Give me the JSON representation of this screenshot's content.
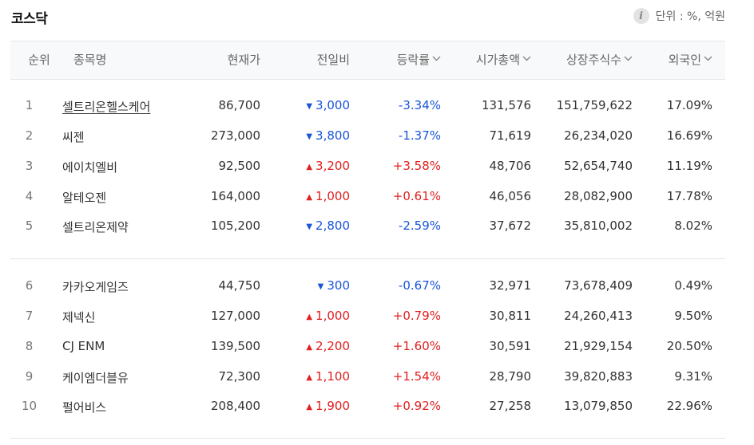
{
  "title": "코스닥",
  "unit_label": "단위 : %, 억원",
  "info_icon": "info-icon",
  "colors": {
    "up": "#e22020",
    "down": "#1a55d9",
    "header_bg": "#f8f9fa"
  },
  "columns": {
    "rank": "순위",
    "name": "종목명",
    "price": "현재가",
    "change": "전일비",
    "rate": "등락률",
    "market_cap": "시가총액",
    "shares": "상장주식수",
    "foreign": "외국인"
  },
  "rows": [
    {
      "rank": "1",
      "name": "셀트리온헬스케어",
      "price": "86,700",
      "dir": "down",
      "change": "3,000",
      "rate": "-3.34%",
      "cap": "131,576",
      "shares": "151,759,622",
      "foreign": "17.09%"
    },
    {
      "rank": "2",
      "name": "씨젠",
      "price": "273,000",
      "dir": "down",
      "change": "3,800",
      "rate": "-1.37%",
      "cap": "71,619",
      "shares": "26,234,020",
      "foreign": "16.69%"
    },
    {
      "rank": "3",
      "name": "에이치엘비",
      "price": "92,500",
      "dir": "up",
      "change": "3,200",
      "rate": "+3.58%",
      "cap": "48,706",
      "shares": "52,654,740",
      "foreign": "11.19%"
    },
    {
      "rank": "4",
      "name": "알테오젠",
      "price": "164,000",
      "dir": "up",
      "change": "1,000",
      "rate": "+0.61%",
      "cap": "46,056",
      "shares": "28,082,900",
      "foreign": "17.78%"
    },
    {
      "rank": "5",
      "name": "셀트리온제약",
      "price": "105,200",
      "dir": "down",
      "change": "2,800",
      "rate": "-2.59%",
      "cap": "37,672",
      "shares": "35,810,002",
      "foreign": "8.02%"
    },
    {
      "rank": "6",
      "name": "카카오게임즈",
      "price": "44,750",
      "dir": "down",
      "change": "300",
      "rate": "-0.67%",
      "cap": "32,971",
      "shares": "73,678,409",
      "foreign": "0.49%"
    },
    {
      "rank": "7",
      "name": "제넥신",
      "price": "127,000",
      "dir": "up",
      "change": "1,000",
      "rate": "+0.79%",
      "cap": "30,811",
      "shares": "24,260,413",
      "foreign": "9.50%"
    },
    {
      "rank": "8",
      "name": "CJ ENM",
      "price": "139,500",
      "dir": "up",
      "change": "2,200",
      "rate": "+1.60%",
      "cap": "30,591",
      "shares": "21,929,154",
      "foreign": "20.50%"
    },
    {
      "rank": "9",
      "name": "케이엠더블유",
      "price": "72,300",
      "dir": "up",
      "change": "1,100",
      "rate": "+1.54%",
      "cap": "28,790",
      "shares": "39,820,883",
      "foreign": "9.31%"
    },
    {
      "rank": "10",
      "name": "펄어비스",
      "price": "208,400",
      "dir": "up",
      "change": "1,900",
      "rate": "+0.92%",
      "cap": "27,258",
      "shares": "13,079,850",
      "foreign": "22.96%"
    }
  ]
}
